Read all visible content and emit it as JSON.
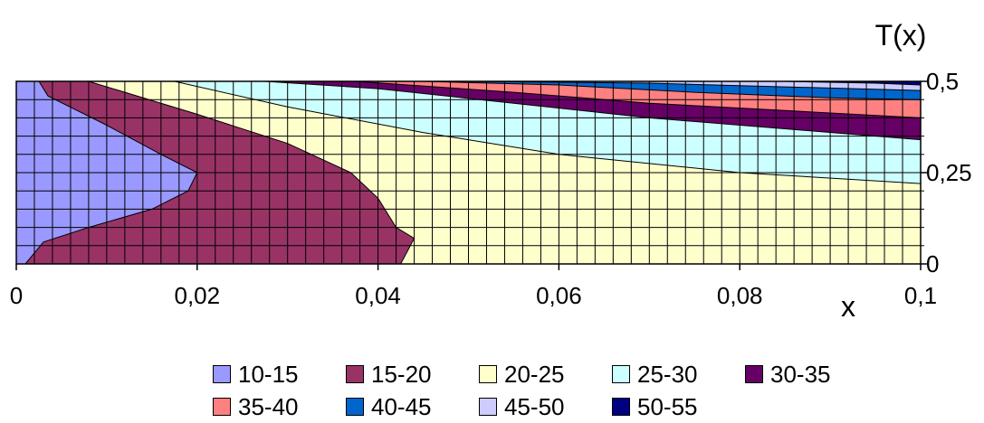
{
  "chart_data": {
    "type": "area",
    "title": "",
    "xlabel": "x",
    "ylabel": "T(x)",
    "xlim": [
      0,
      0.1
    ],
    "ylim": [
      0,
      0.5
    ],
    "x_ticks": [
      "0",
      "0,02",
      "0,04",
      "0,06",
      "0,08",
      "0,1"
    ],
    "y_ticks": [
      "0",
      "0,25",
      "0,5"
    ],
    "grid": true,
    "legend_position": "bottom",
    "bands": [
      {
        "name": "10-15",
        "color": "#9999ff"
      },
      {
        "name": "15-20",
        "color": "#993366"
      },
      {
        "name": "20-25",
        "color": "#ffffcc"
      },
      {
        "name": "25-30",
        "color": "#ccffff"
      },
      {
        "name": "30-35",
        "color": "#660066"
      },
      {
        "name": "35-40",
        "color": "#ff8080"
      },
      {
        "name": "40-45",
        "color": "#0066cc"
      },
      {
        "name": "45-50",
        "color": "#ccccff"
      },
      {
        "name": "50-55",
        "color": "#000080"
      }
    ],
    "contours": [
      {
        "name": "15",
        "points": [
          [
            0.0025,
            0.5
          ],
          [
            0.0035,
            0.46
          ],
          [
            0.01,
            0.38
          ],
          [
            0.016,
            0.3
          ],
          [
            0.02,
            0.25
          ],
          [
            0.019,
            0.2
          ],
          [
            0.015,
            0.15
          ],
          [
            0.008,
            0.1
          ],
          [
            0.003,
            0.06
          ],
          [
            0.001,
            0.0
          ]
        ]
      },
      {
        "name": "20",
        "points": [
          [
            0.008,
            0.5
          ],
          [
            0.02,
            0.41
          ],
          [
            0.03,
            0.33
          ],
          [
            0.037,
            0.25
          ],
          [
            0.04,
            0.18
          ],
          [
            0.042,
            0.1
          ],
          [
            0.044,
            0.07
          ],
          [
            0.0425,
            0.0
          ]
        ]
      },
      {
        "name": "25",
        "points": [
          [
            0.0175,
            0.5
          ],
          [
            0.03,
            0.43
          ],
          [
            0.045,
            0.36
          ],
          [
            0.06,
            0.3
          ],
          [
            0.08,
            0.25
          ],
          [
            0.1,
            0.22
          ]
        ]
      },
      {
        "name": "30",
        "points": [
          [
            0.0275,
            0.5
          ],
          [
            0.04,
            0.48
          ],
          [
            0.055,
            0.44
          ],
          [
            0.07,
            0.4
          ],
          [
            0.085,
            0.37
          ],
          [
            0.1,
            0.34
          ]
        ]
      },
      {
        "name": "35",
        "points": [
          [
            0.0375,
            0.5
          ],
          [
            0.055,
            0.47
          ],
          [
            0.07,
            0.44
          ],
          [
            0.085,
            0.42
          ],
          [
            0.1,
            0.4
          ]
        ]
      },
      {
        "name": "40",
        "points": [
          [
            0.045,
            0.5
          ],
          [
            0.06,
            0.49
          ],
          [
            0.075,
            0.47
          ],
          [
            0.09,
            0.455
          ],
          [
            0.1,
            0.45
          ]
        ]
      },
      {
        "name": "45",
        "points": [
          [
            0.05,
            0.5
          ],
          [
            0.07,
            0.495
          ],
          [
            0.085,
            0.485
          ],
          [
            0.1,
            0.475
          ]
        ]
      },
      {
        "name": "50",
        "points": [
          [
            0.085,
            0.5
          ],
          [
            0.095,
            0.495
          ],
          [
            0.1,
            0.49
          ]
        ]
      }
    ]
  }
}
